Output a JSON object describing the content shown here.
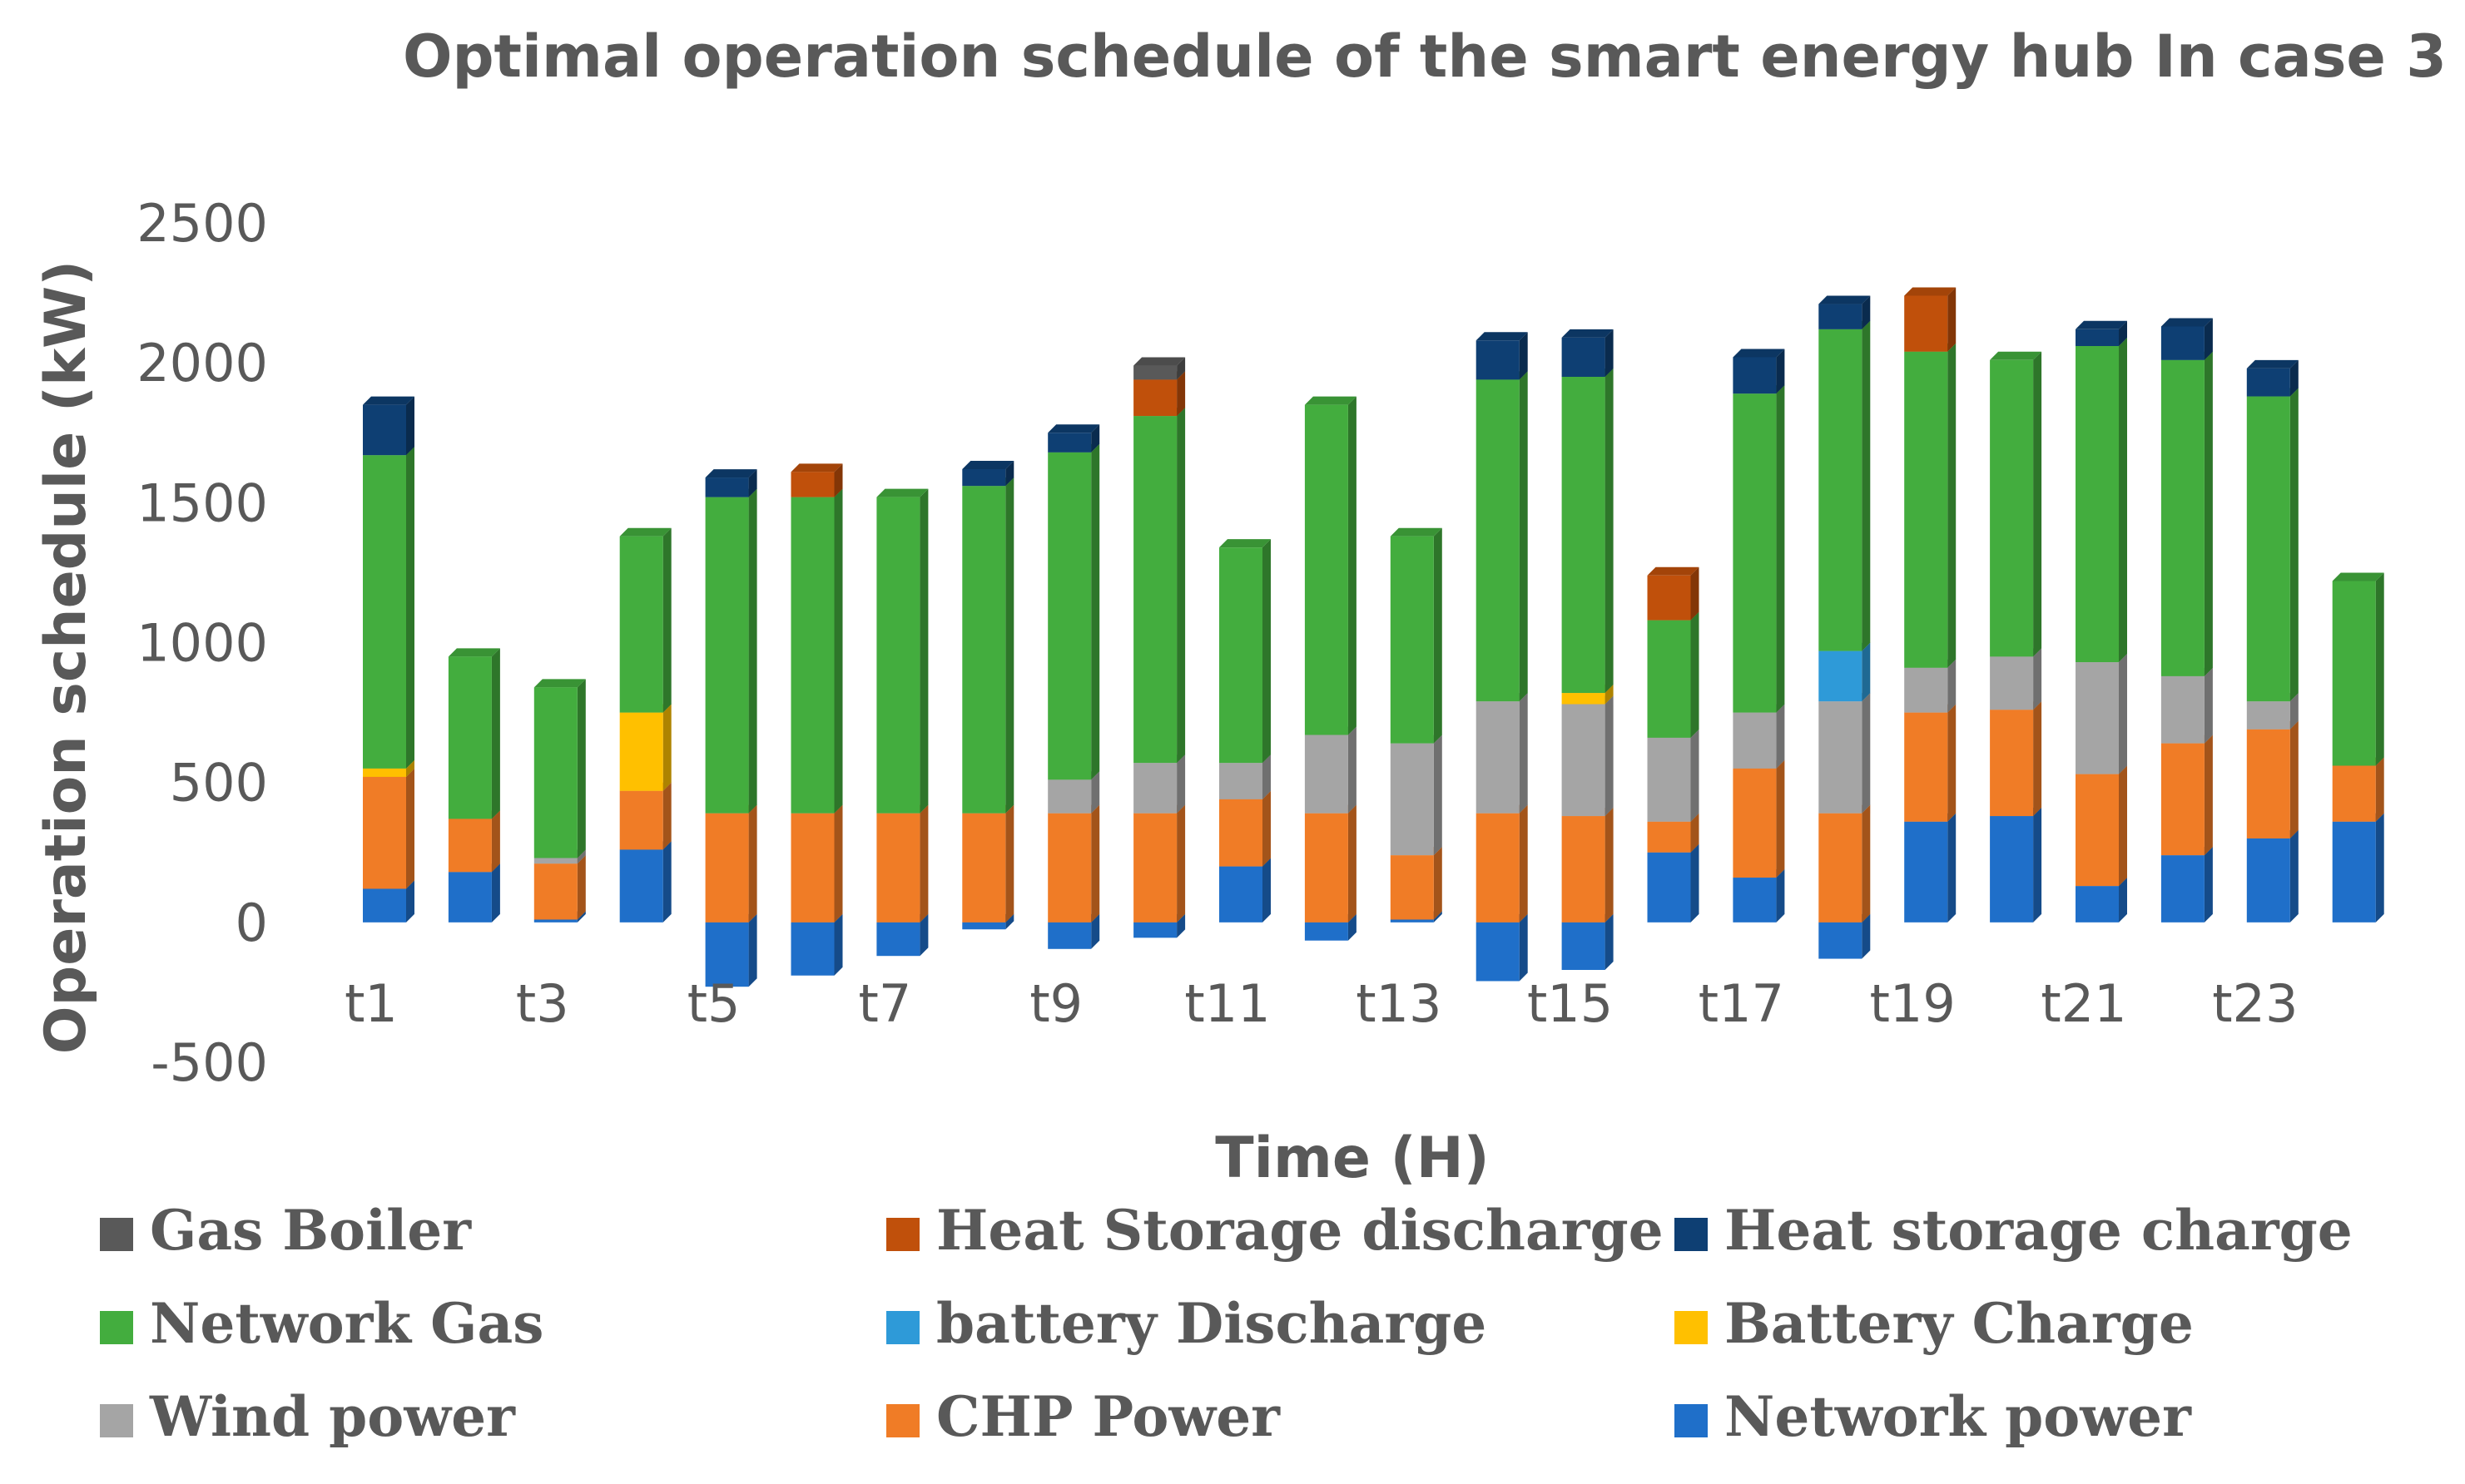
{
  "chart_data": {
    "type": "bar",
    "stacked": true,
    "title": "Optimal operation schedule of the smart energy hub In case 3",
    "xlabel": "Time (H)",
    "ylabel": "Operation  schedule (kW)",
    "ylim": [
      -500,
      2500
    ],
    "yticks": [
      2500,
      2000,
      1500,
      1000,
      500,
      0,
      -500
    ],
    "categories": [
      "t1",
      "t2",
      "t3",
      "t4",
      "t5",
      "t6",
      "t7",
      "t8",
      "t9",
      "t10",
      "t11",
      "t12",
      "t13",
      "t14",
      "t15",
      "t16",
      "t17",
      "t18",
      "t19",
      "t20",
      "t21",
      "t22",
      "t23",
      "t24"
    ],
    "visible_tick_labels": [
      "t1",
      "t3",
      "t5",
      "t7",
      "t9",
      "t11",
      "t13",
      "t15",
      "t17",
      "t19",
      "t21",
      "t23"
    ],
    "legend_position": "bottom",
    "series": [
      {
        "name": "Network power",
        "color": "#1f6fc9",
        "values": [
          120,
          180,
          10,
          260,
          -230,
          -190,
          -120,
          -25,
          -95,
          -55,
          200,
          -65,
          10,
          -210,
          -170,
          250,
          160,
          -130,
          360,
          380,
          130,
          240,
          300,
          360
        ]
      },
      {
        "name": "CHP Power",
        "color": "#f07c26",
        "values": [
          400,
          190,
          200,
          210,
          390,
          390,
          390,
          390,
          390,
          390,
          240,
          390,
          230,
          390,
          380,
          110,
          390,
          390,
          390,
          380,
          400,
          400,
          390,
          200
        ]
      },
      {
        "name": "Wind power",
        "color": "#a5a5a5",
        "values": [
          0,
          0,
          20,
          0,
          0,
          0,
          0,
          0,
          120,
          180,
          130,
          280,
          400,
          400,
          400,
          300,
          200,
          400,
          160,
          190,
          400,
          240,
          100,
          0
        ]
      },
      {
        "name": "Battery Charge",
        "color": "#ffc000",
        "values": [
          30,
          0,
          0,
          280,
          0,
          0,
          0,
          0,
          0,
          0,
          0,
          0,
          0,
          0,
          40,
          0,
          0,
          0,
          0,
          0,
          0,
          0,
          0,
          0
        ]
      },
      {
        "name": "battery Discharge",
        "color": "#2e9ad8",
        "values": [
          0,
          0,
          0,
          0,
          0,
          0,
          0,
          0,
          0,
          0,
          0,
          0,
          0,
          0,
          0,
          0,
          0,
          180,
          0,
          0,
          0,
          0,
          0,
          0
        ]
      },
      {
        "name": "Network Gas",
        "color": "#43ad3e",
        "values": [
          1120,
          580,
          610,
          630,
          1130,
          1130,
          1130,
          1170,
          1170,
          1240,
          770,
          1180,
          740,
          1150,
          1130,
          420,
          1140,
          1150,
          1130,
          1060,
          1130,
          1130,
          1090,
          660
        ]
      },
      {
        "name": "Heat storage charge",
        "color": "#0e3f73",
        "values": [
          180,
          0,
          0,
          0,
          70,
          0,
          0,
          60,
          70,
          0,
          0,
          0,
          0,
          140,
          140,
          0,
          130,
          90,
          0,
          0,
          60,
          120,
          100,
          0
        ]
      },
      {
        "name": "Heat Storage discharge",
        "color": "#c0500b",
        "values": [
          0,
          0,
          0,
          0,
          0,
          90,
          0,
          0,
          0,
          130,
          0,
          0,
          0,
          0,
          0,
          160,
          0,
          0,
          200,
          0,
          0,
          0,
          0,
          0
        ]
      },
      {
        "name": "Gas Boiler",
        "color": "#595959",
        "values": [
          0,
          0,
          0,
          0,
          0,
          0,
          0,
          0,
          0,
          50,
          0,
          0,
          0,
          0,
          0,
          0,
          0,
          0,
          0,
          0,
          0,
          0,
          0,
          0
        ]
      }
    ]
  },
  "legend_order": [
    "Gas Boiler",
    "Heat Storage discharge",
    "Heat storage charge",
    "Network Gas",
    "battery Discharge",
    "Battery Charge",
    "Wind power",
    "CHP Power",
    "Network power"
  ]
}
